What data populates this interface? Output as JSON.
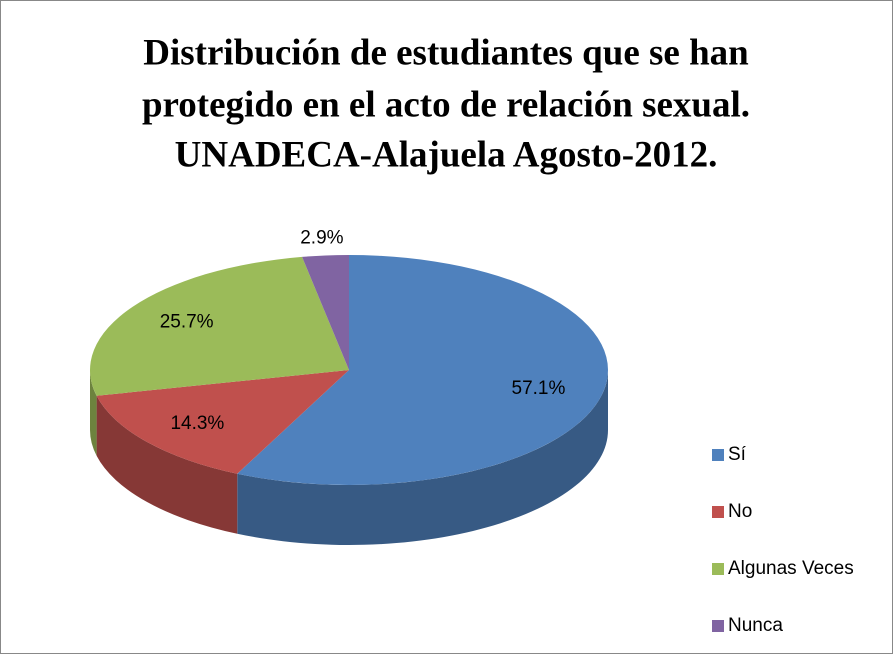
{
  "chart_data": {
    "type": "pie3d",
    "title": [
      "Distribución de estudiantes que se han",
      "protegido en el acto de relación sexual.",
      "UNADECA-Alajuela Agosto-2012."
    ],
    "categories": [
      "Sí",
      "No",
      "Algunas Veces",
      "Nunca"
    ],
    "values": [
      57.1,
      14.3,
      25.7,
      2.9
    ],
    "value_labels": [
      "57.1%",
      "14.3%",
      "25.7%",
      "2.9%"
    ],
    "colors": [
      "#4f81bd",
      "#c0504d",
      "#9bbb59",
      "#8064a2"
    ],
    "legend": "right"
  }
}
